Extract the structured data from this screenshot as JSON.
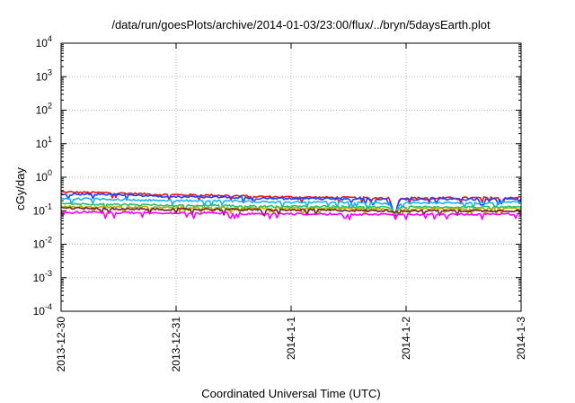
{
  "chart_data": {
    "type": "line",
    "title": "/data/run/goesPlots/archive/2014-01-03/23:00/flux/../bryn/5daysEarth.plot",
    "xlabel": "Coordinated Universal Time (UTC)",
    "ylabel": "cGy/day",
    "yscale": "log",
    "ylim_exponents": [
      -4,
      4
    ],
    "ytick_base": "10",
    "ytick_exponents": [
      "-4",
      "-3",
      "-2",
      "-1",
      "0",
      "1",
      "2",
      "3",
      "4"
    ],
    "x_tick_labels": [
      "2013-12-30",
      "2013-12-31",
      "2014-1-1",
      "2014-1-2",
      "2014-1-3"
    ],
    "xlim_days": [
      0,
      4.0
    ],
    "grid": true,
    "legend": "none",
    "series": [
      {
        "color": "#e8141e",
        "values": [
          0.36,
          0.34,
          0.3,
          0.29,
          0.26,
          0.25,
          0.24,
          0.24,
          0.24,
          0.25
        ]
      },
      {
        "color": "#1f3fff",
        "values": [
          0.31,
          0.3,
          0.26,
          0.26,
          0.23,
          0.23,
          0.22,
          0.22,
          0.22,
          0.23
        ]
      },
      {
        "color": "#19b4f0",
        "values": [
          0.23,
          0.22,
          0.2,
          0.2,
          0.18,
          0.18,
          0.17,
          0.17,
          0.17,
          0.18
        ]
      },
      {
        "color": "#25c26e",
        "values": [
          0.16,
          0.155,
          0.145,
          0.145,
          0.135,
          0.135,
          0.13,
          0.13,
          0.13,
          0.13
        ]
      },
      {
        "color": "#b0b000",
        "values": [
          0.135,
          0.13,
          0.125,
          0.125,
          0.12,
          0.12,
          0.115,
          0.115,
          0.115,
          0.115
        ]
      },
      {
        "color": "#7a1e1e",
        "values": [
          0.12,
          0.115,
          0.11,
          0.11,
          0.105,
          0.105,
          0.1,
          0.1,
          0.1,
          0.1
        ]
      },
      {
        "color": "#ff00ff",
        "values": [
          0.09,
          0.088,
          0.085,
          0.085,
          0.08,
          0.08,
          0.078,
          0.078,
          0.078,
          0.08
        ]
      }
    ],
    "x_days": [
      0,
      0.45,
      0.9,
      1.35,
      1.8,
      2.25,
      2.7,
      3.15,
      3.6,
      4.0
    ],
    "dip": {
      "x_day": 2.9,
      "min_value": 0.04
    }
  }
}
